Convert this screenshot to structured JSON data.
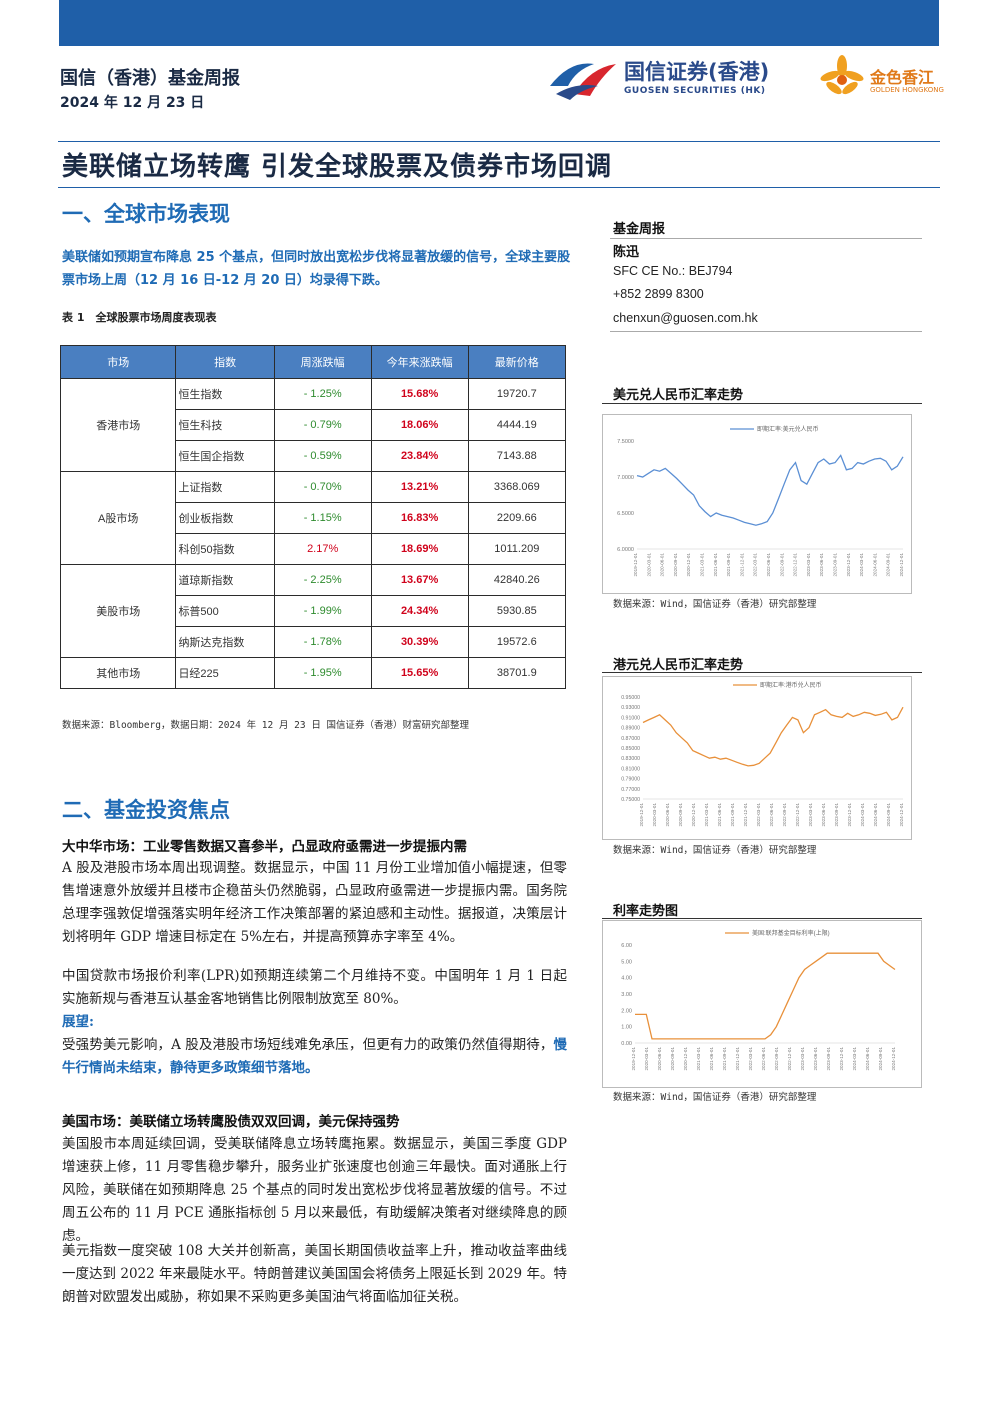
{
  "header": {
    "report_title": "国信（香港）基金周报",
    "date": "2024 年 12 月 23 日",
    "logo_zh": "国信证券(香港)",
    "logo_en": "GUOSEN SECURITIES (HK)",
    "logo2_zh": "金色香江",
    "logo2_en": "GOLDEN HONGKONG"
  },
  "main_title": "美联储立场转鹰 引发全球股票及债券市场回调",
  "section1": {
    "title": "一、全球市场表现",
    "lead": "美联储如预期宣布降息 25 个基点，但同时放出宽松步伐将显著放缓的信号，全球主要股票市场上周（12 月 16 日-12 月 20 日）均录得下跌。",
    "table_caption": "表 1　全球股票市场周度表现表",
    "table_headers": [
      "市场",
      "指数",
      "周涨跌幅",
      "今年来涨跌幅",
      "最新价格"
    ],
    "groups": [
      {
        "market": "香港市场",
        "rows": [
          {
            "index": "恒生指数",
            "week": "- 1.25%",
            "ytd": "15.68%",
            "price": "19720.7"
          },
          {
            "index": "恒生科技",
            "week": "- 0.79%",
            "ytd": "18.06%",
            "price": "4444.19"
          },
          {
            "index": "恒生国企指数",
            "week": "- 0.59%",
            "ytd": "23.84%",
            "price": "7143.88"
          }
        ]
      },
      {
        "market": "A股市场",
        "rows": [
          {
            "index": "上证指数",
            "week": "- 0.70%",
            "ytd": "13.21%",
            "price": "3368.069"
          },
          {
            "index": "创业板指数",
            "week": "- 1.15%",
            "ytd": "16.83%",
            "price": "2209.66"
          },
          {
            "index": "科创50指数",
            "week": "2.17%",
            "ytd": "18.69%",
            "price": "1011.209"
          }
        ]
      },
      {
        "market": "美股市场",
        "rows": [
          {
            "index": "道琼斯指数",
            "week": "- 2.25%",
            "ytd": "13.67%",
            "price": "42840.26"
          },
          {
            "index": "标普500",
            "week": "- 1.99%",
            "ytd": "24.34%",
            "price": "5930.85"
          },
          {
            "index": "纳斯达克指数",
            "week": "- 1.78%",
            "ytd": "30.39%",
            "price": "19572.6"
          }
        ]
      },
      {
        "market": "其他市场",
        "rows": [
          {
            "index": "日经225",
            "week": "- 1.95%",
            "ytd": "15.65%",
            "price": "38701.9"
          }
        ]
      }
    ],
    "table_source": "数据来源：Bloomberg，数据日期：2024 年 12 月 23 日  国信证券（香港）财富研究部整理"
  },
  "section2": {
    "title": "二、基金投资焦点",
    "sub1": "大中华市场：工业零售数据又喜参半，凸显政府亟需进一步提振内需",
    "p1": "A 股及港股市场本周出现调整。数据显示，中国 11 月份工业增加值小幅提速，但零售增速意外放缓并且楼市企稳苗头仍然脆弱，凸显政府亟需进一步提振内需。国务院总理李强敦促增强落实明年经济工作决策部署的紧迫感和主动性。据报道，决策层计划将明年 GDP 增速目标定在 5%左右，并提高预算赤字率至 4%。",
    "p2": "中国贷款市场报价利率(LPR)如预期连续第二个月维持不变。中国明年 1 月 1 日起实施新规与香港互认基金客地销售比例限制放宽至 80%。",
    "outlook_label": "展望:",
    "p3_a": "受强势美元影响，A 股及港股市场短线难免承压，但更有力的政策仍然值得期待，",
    "p3_b": "慢牛行情尚未结束，静待更多政策细节落地。",
    "sub2": "美国市场：美联储立场转鹰股债双双回调，美元保持强势",
    "p4": "美国股市本周延续回调，受美联储降息立场转鹰拖累。数据显示，美国三季度 GDP 增速获上修，11 月零售稳步攀升，服务业扩张速度也创逾三年最快。面对通胀上行风险，美联储在如预期降息 25 个基点的同时发出宽松步伐将显著放缓的信号。不过周五公布的 11 月 PCE 通胀指标创 5 月以来最低，有助缓解决策者对继续降息的顾虑。",
    "p5": "美元指数一度突破 108 大关并创新高，美国长期国债收益率上升，推动收益率曲线一度达到 2022 年来最陡水平。特朗普建议美国国会将债务上限延长到 2029 年。特朗普对欧盟发出威胁，称如果不采购更多美国油气将面临加征关税。"
  },
  "sidebar": {
    "label": "基金周报",
    "name": "陈迅",
    "sfc": "SFC CE No.: BEJ794",
    "phone": "+852 2899 8300",
    "email": "chenxun@guosen.com.hk",
    "chart1_title": "美元兑人民币汇率走势",
    "chart2_title": "港元兑人民币汇率走势",
    "chart3_title": "利率走势图",
    "chart_source": "数据来源：Wind，国信证券（香港）研究部整理"
  },
  "colors": {
    "brand_blue": "#1f5fa8",
    "up_red": "#d0021b",
    "down_green": "#2e8b2e",
    "line_blue": "#5b8fd4",
    "line_orange": "#e8903a"
  },
  "chart_data": [
    {
      "type": "line",
      "title": "美元兑人民币汇率走势",
      "legend": "即期汇率:美元兑人民币",
      "yticks": [
        "6.0000",
        "6.5000",
        "7.0000",
        "7.5000"
      ],
      "ylim": [
        6.0,
        7.5
      ],
      "xticks": [
        "2019-12-01",
        "2020-03-01",
        "2020-06-01",
        "2020-09-01",
        "2020-12-01",
        "2021-03-01",
        "2021-06-01",
        "2021-09-01",
        "2021-12-01",
        "2022-03-01",
        "2022-06-01",
        "2022-09-01",
        "2022-12-01",
        "2023-03-01",
        "2023-06-01",
        "2023-09-01",
        "2023-12-01",
        "2024-03-01",
        "2024-06-01",
        "2024-09-01",
        "2024-12-01"
      ],
      "values": [
        7.02,
        7.0,
        7.05,
        7.1,
        7.08,
        7.12,
        7.05,
        6.98,
        6.9,
        6.82,
        6.75,
        6.6,
        6.52,
        6.45,
        6.5,
        6.47,
        6.45,
        6.43,
        6.4,
        6.37,
        6.35,
        6.33,
        6.35,
        6.38,
        6.5,
        6.7,
        6.9,
        7.1,
        7.2,
        6.95,
        6.9,
        7.05,
        7.2,
        7.25,
        7.18,
        7.2,
        7.3,
        7.1,
        7.12,
        7.2,
        7.18,
        7.22,
        7.25,
        7.26,
        7.22,
        7.1,
        7.15,
        7.28
      ]
    },
    {
      "type": "line",
      "title": "港元兑人民币汇率走势",
      "legend": "即期汇率:港币兑人民币",
      "yticks": [
        "0.75000",
        "0.77000",
        "0.79000",
        "0.81000",
        "0.83000",
        "0.85000",
        "0.87000",
        "0.89000",
        "0.91000",
        "0.93000",
        "0.95000"
      ],
      "ylim": [
        0.75,
        0.95
      ],
      "xticks": [
        "2019-12-01",
        "2020-03-01",
        "2020-06-01",
        "2020-09-01",
        "2020-12-01",
        "2021-03-01",
        "2021-06-01",
        "2021-09-01",
        "2021-12-01",
        "2022-03-01",
        "2022-06-01",
        "2022-09-01",
        "2022-12-01",
        "2023-03-01",
        "2023-06-01",
        "2023-09-01",
        "2023-12-01",
        "2024-03-01",
        "2024-06-01",
        "2024-09-01",
        "2024-12-01"
      ],
      "values": [
        0.9,
        0.905,
        0.91,
        0.915,
        0.905,
        0.895,
        0.88,
        0.87,
        0.86,
        0.845,
        0.84,
        0.835,
        0.83,
        0.832,
        0.828,
        0.83,
        0.826,
        0.822,
        0.818,
        0.815,
        0.816,
        0.82,
        0.83,
        0.84,
        0.86,
        0.88,
        0.895,
        0.91,
        0.905,
        0.88,
        0.89,
        0.915,
        0.92,
        0.925,
        0.915,
        0.912,
        0.91,
        0.918,
        0.912,
        0.915,
        0.92,
        0.918,
        0.914,
        0.916,
        0.92,
        0.905,
        0.91,
        0.93
      ]
    },
    {
      "type": "line",
      "title": "利率走势图",
      "legend": "美国:联邦基金目标利率(上限)",
      "yticks": [
        "0.00",
        "1.00",
        "2.00",
        "3.00",
        "4.00",
        "5.00",
        "6.00"
      ],
      "ylim": [
        0,
        6
      ],
      "xticks": [
        "2019-12-01",
        "2020-03-01",
        "2020-06-01",
        "2020-09-01",
        "2020-12-01",
        "2021-03-01",
        "2021-06-01",
        "2021-09-01",
        "2021-12-01",
        "2022-03-01",
        "2022-06-01",
        "2022-09-01",
        "2022-12-01",
        "2023-03-01",
        "2023-06-01",
        "2023-09-01",
        "2023-12-01",
        "2024-03-01",
        "2024-06-01",
        "2024-09-01",
        "2024-12-01"
      ],
      "values": [
        1.75,
        1.75,
        1.75,
        0.25,
        0.25,
        0.25,
        0.25,
        0.25,
        0.25,
        0.25,
        0.25,
        0.25,
        0.25,
        0.25,
        0.25,
        0.25,
        0.25,
        0.25,
        0.25,
        0.25,
        0.25,
        0.25,
        0.25,
        0.25,
        0.5,
        1.0,
        1.75,
        2.5,
        3.25,
        4.0,
        4.5,
        4.75,
        5.0,
        5.25,
        5.5,
        5.5,
        5.5,
        5.5,
        5.5,
        5.5,
        5.5,
        5.5,
        5.5,
        5.5,
        5.0,
        4.75,
        4.5
      ]
    }
  ]
}
